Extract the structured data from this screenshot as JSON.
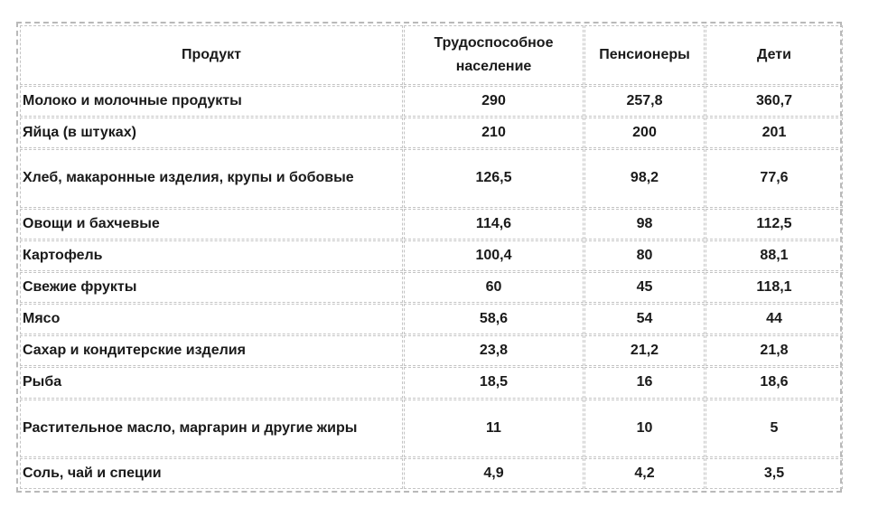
{
  "table": {
    "headers": [
      "Продукт",
      "Трудоспособное население",
      "Пенсионеры",
      "Дети"
    ],
    "rows": [
      {
        "product": "Молоко и молочные продукты",
        "working": "290",
        "pensioners": "257,8",
        "children": "360,7"
      },
      {
        "product": "Яйца (в штуках)",
        "working": "210",
        "pensioners": "200",
        "children": "201"
      },
      {
        "product": "Хлеб, макаронные изделия, крупы и бобовые",
        "working": "126,5",
        "pensioners": "98,2",
        "children": "77,6"
      },
      {
        "product": "Овощи и бахчевые",
        "working": "114,6",
        "pensioners": "98",
        "children": "112,5"
      },
      {
        "product": "Картофель",
        "working": "100,4",
        "pensioners": "80",
        "children": "88,1"
      },
      {
        "product": "Свежие фрукты",
        "working": "60",
        "pensioners": "45",
        "children": "118,1"
      },
      {
        "product": "Мясо",
        "working": "58,6",
        "pensioners": "54",
        "children": "44"
      },
      {
        "product": "Сахар и кондитерские изделия",
        "working": "23,8",
        "pensioners": "21,2",
        "children": "21,8"
      },
      {
        "product": "Рыба",
        "working": "18,5",
        "pensioners": "16",
        "children": "18,6"
      },
      {
        "product": "Растительное масло, маргарин и другие жиры",
        "working": "11",
        "pensioners": "10",
        "children": "5"
      },
      {
        "product": "Соль, чай и специи",
        "working": "4,9",
        "pensioners": "4,2",
        "children": "3,5"
      }
    ]
  }
}
